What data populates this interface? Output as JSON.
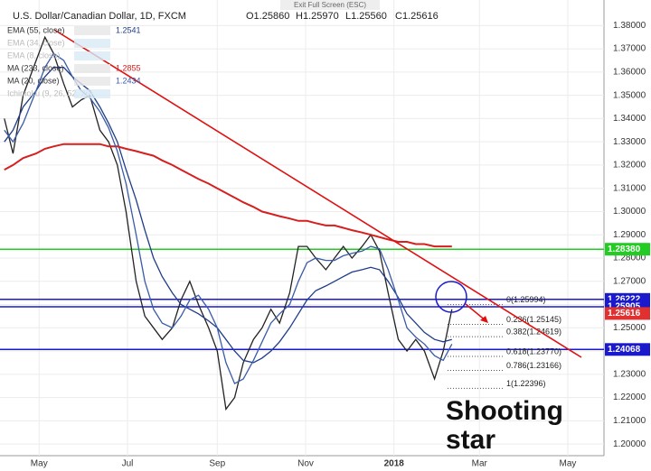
{
  "header": {
    "title": "U.S. Dollar/Canadian Dollar, 1D, FXCM",
    "ohlc": [
      {
        "value": 1.2586,
        "label": "O1.25860"
      },
      {
        "value": 1.2597,
        "label": "H1.25970"
      },
      {
        "value": 1.2556,
        "label": "L1.25560"
      },
      {
        "value": 1.25616,
        "label": "C1.25616"
      }
    ],
    "exit_button": "Exit Full Screen (ESC)"
  },
  "chart_data": {
    "type": "line",
    "annotation": "Shooting star",
    "x": [
      6,
      12,
      19,
      28,
      34,
      40,
      47,
      53,
      59,
      65,
      72,
      78,
      84,
      90,
      97,
      103,
      109,
      115,
      122,
      128,
      134,
      140,
      147,
      153,
      159,
      165,
      171,
      178,
      184,
      190,
      196,
      203,
      209,
      215,
      221,
      228,
      234,
      240,
      246,
      253,
      259,
      265,
      271,
      278,
      284,
      290,
      296,
      303,
      309,
      315
    ],
    "xlim": [
      3,
      420
    ],
    "xticks": [
      {
        "value": 30,
        "label": "May"
      },
      {
        "value": 91,
        "label": "Jul"
      },
      {
        "value": 153,
        "label": "Sep"
      },
      {
        "value": 214,
        "label": "Nov"
      },
      {
        "value": 275,
        "label": "2018"
      },
      {
        "value": 334,
        "label": "Mar"
      },
      {
        "value": 395,
        "label": "May"
      }
    ],
    "ylim": [
      1.195,
      1.391
    ],
    "yticks": [
      {
        "value": 1.2,
        "label": "1.20000"
      },
      {
        "value": 1.21,
        "label": "1.21000"
      },
      {
        "value": 1.22,
        "label": "1.22000"
      },
      {
        "value": 1.23,
        "label": "1.23000"
      },
      {
        "value": 1.24,
        "label": "1.24000"
      },
      {
        "value": 1.25,
        "label": "1.25000"
      },
      {
        "value": 1.26,
        "label": "1.26000"
      },
      {
        "value": 1.27,
        "label": "1.27000"
      },
      {
        "value": 1.28,
        "label": "1.28000"
      },
      {
        "value": 1.29,
        "label": "1.29000"
      },
      {
        "value": 1.3,
        "label": "1.30000"
      },
      {
        "value": 1.31,
        "label": "1.31000"
      },
      {
        "value": 1.32,
        "label": "1.32000"
      },
      {
        "value": 1.33,
        "label": "1.33000"
      },
      {
        "value": 1.34,
        "label": "1.34000"
      },
      {
        "value": 1.35,
        "label": "1.35000"
      },
      {
        "value": 1.36,
        "label": "1.36000"
      },
      {
        "value": 1.37,
        "label": "1.37000"
      },
      {
        "value": 1.38,
        "label": "1.38000"
      }
    ],
    "grid": true,
    "series": [
      {
        "color": "#222222",
        "values": [
          1.34,
          1.325,
          1.35,
          1.365,
          1.375,
          1.368,
          1.355,
          1.345,
          1.348,
          1.35,
          1.335,
          1.33,
          1.32,
          1.3,
          1.27,
          1.255,
          1.25,
          1.245,
          1.25,
          1.262,
          1.27,
          1.26,
          1.25,
          1.24,
          1.215,
          1.22,
          1.235,
          1.245,
          1.25,
          1.258,
          1.252,
          1.265,
          1.285,
          1.285,
          1.28,
          1.275,
          1.28,
          1.285,
          1.28,
          1.285,
          1.29,
          1.283,
          1.265,
          1.245,
          1.24,
          1.245,
          1.24,
          1.228,
          1.24,
          1.258
        ]
      },
      {
        "name": "EMA (55, close)",
        "last": 1.2541,
        "color": "#1f3c88",
        "values": [
          1.33,
          1.335,
          1.345,
          1.352,
          1.358,
          1.362,
          1.362,
          1.358,
          1.355,
          1.352,
          1.345,
          1.338,
          1.33,
          1.318,
          1.305,
          1.292,
          1.28,
          1.272,
          1.265,
          1.26,
          1.258,
          1.256,
          1.253,
          1.25,
          1.245,
          1.24,
          1.236,
          1.235,
          1.237,
          1.24,
          1.244,
          1.25,
          1.256,
          1.262,
          1.266,
          1.268,
          1.27,
          1.272,
          1.274,
          1.275,
          1.276,
          1.275,
          1.27,
          1.263,
          1.256,
          1.252,
          1.248,
          1.245,
          1.244,
          1.245
        ]
      },
      {
        "name": "MA (233, close)",
        "last": 1.2855,
        "color": "#d61f1f",
        "values": [
          1.318,
          1.32,
          1.323,
          1.325,
          1.327,
          1.328,
          1.329,
          1.329,
          1.329,
          1.329,
          1.329,
          1.328,
          1.328,
          1.327,
          1.326,
          1.325,
          1.324,
          1.322,
          1.32,
          1.318,
          1.316,
          1.314,
          1.312,
          1.31,
          1.308,
          1.306,
          1.304,
          1.302,
          1.3,
          1.299,
          1.298,
          1.297,
          1.296,
          1.296,
          1.295,
          1.294,
          1.294,
          1.293,
          1.292,
          1.291,
          1.29,
          1.289,
          1.288,
          1.287,
          1.287,
          1.286,
          1.286,
          1.285,
          1.285,
          1.285
        ]
      },
      {
        "name": "MA (20, close)",
        "last": 1.2434,
        "color": "#3a5ba8",
        "values": [
          1.335,
          1.33,
          1.338,
          1.352,
          1.362,
          1.368,
          1.365,
          1.358,
          1.352,
          1.349,
          1.343,
          1.336,
          1.326,
          1.312,
          1.29,
          1.27,
          1.258,
          1.252,
          1.25,
          1.255,
          1.262,
          1.264,
          1.258,
          1.25,
          1.235,
          1.226,
          1.228,
          1.236,
          1.244,
          1.252,
          1.256,
          1.26,
          1.27,
          1.278,
          1.28,
          1.279,
          1.279,
          1.281,
          1.282,
          1.283,
          1.285,
          1.284,
          1.275,
          1.262,
          1.25,
          1.246,
          1.243,
          1.238,
          1.236,
          1.243
        ]
      }
    ],
    "inactive_indicators": [
      "EMA (34, close)",
      "EMA (8, close)",
      "Ichimoku (9, 26, 52, 26)"
    ],
    "levels": [
      {
        "value": 1.2838,
        "label": "1.28380",
        "color": "#22cc22"
      },
      {
        "value": 1.26222,
        "color": "#1a1acc"
      },
      {
        "value": 1.25905,
        "color": "#1a1acc"
      },
      {
        "value": 1.24068,
        "color": "#1a1acc"
      }
    ],
    "last_price": {
      "value": 1.25616,
      "color": "#e03030"
    },
    "fib": [
      {
        "value": 1.25994,
        "label": "0(1.25994)"
      },
      {
        "value": 1.25145,
        "label": "0.236(1.25145)"
      },
      {
        "value": 1.24619,
        "label": "0.382(1.24619)"
      },
      {
        "value": 1.2377,
        "label": "0.618(1.23770)"
      },
      {
        "value": 1.23166,
        "label": "0.786(1.23166)"
      },
      {
        "value": 1.22396,
        "label": "1(1.22396)"
      }
    ]
  }
}
